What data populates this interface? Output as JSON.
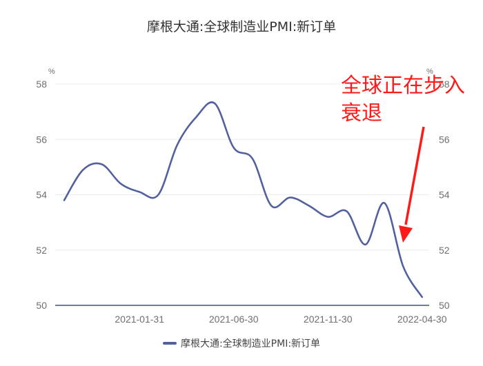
{
  "chart_data": {
    "type": "line",
    "title": "摩根大通:全球制造业PMI:新订单",
    "xlabel": "",
    "ylabel": "%",
    "ylabel_right": "%",
    "ylim": [
      50,
      58
    ],
    "yticks": [
      50,
      52,
      54,
      56,
      58
    ],
    "xticks": [
      "2021-01-31",
      "2021-06-30",
      "2021-11-30",
      "2022-04-30"
    ],
    "grid": true,
    "legend_position": "bottom",
    "x": [
      "2020-09-30",
      "2020-10-31",
      "2020-11-30",
      "2020-12-31",
      "2021-01-31",
      "2021-02-28",
      "2021-03-31",
      "2021-04-30",
      "2021-05-31",
      "2021-06-30",
      "2021-07-31",
      "2021-08-31",
      "2021-09-30",
      "2021-10-31",
      "2021-11-30",
      "2021-12-31",
      "2022-01-31",
      "2022-02-28",
      "2022-03-31",
      "2022-04-30"
    ],
    "series": [
      {
        "name": "摩根大通:全球制造业PMI:新订单",
        "color": "#5360a0",
        "values": [
          53.8,
          54.9,
          55.1,
          54.4,
          54.1,
          54.0,
          55.8,
          56.8,
          57.3,
          55.7,
          55.3,
          53.6,
          53.9,
          53.6,
          53.2,
          53.4,
          52.2,
          53.7,
          51.4,
          50.3
        ]
      }
    ],
    "annotations": [
      {
        "text": "全球正在步入衰退",
        "color": "#ff1a1a",
        "type": "arrow-callout",
        "points_to": "2022-03-31"
      }
    ]
  },
  "header": {
    "title": "摩根大通:全球制造业PMI:新订单"
  },
  "annotation": {
    "line1": "全球正在步入",
    "line2": "衰退"
  },
  "legend": {
    "label": "摩根大通:全球制造业PMI:新订单"
  },
  "axis": {
    "left_unit": "%",
    "right_unit": "%"
  }
}
